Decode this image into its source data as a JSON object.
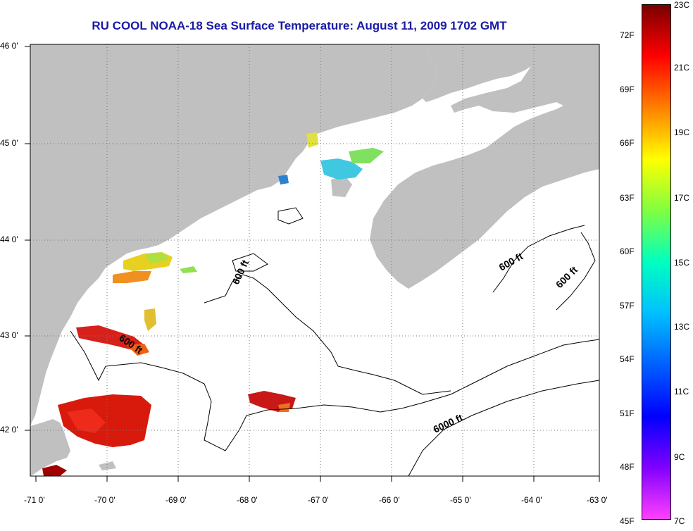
{
  "title": "RU COOL  NOAA-18  Sea Surface Temperature:  August 11, 2009 1702 GMT",
  "map": {
    "lon_range": [
      -71,
      -63
    ],
    "lat_range": [
      41.5,
      46
    ],
    "x_ticks": [
      "-71 0'",
      "-70 0'",
      "-69 0'",
      "-68 0'",
      "-67 0'",
      "-66 0'",
      "-65 0'",
      "-64 0'",
      "-63 0'"
    ],
    "y_ticks": [
      "46 0'",
      "45 0'",
      "44 0'",
      "43 0'",
      "42 0'"
    ],
    "grid": "dotted",
    "land_color": "#c0c0c0",
    "ocean_color": "#ffffff"
  },
  "contours": [
    {
      "label": "600 ft"
    },
    {
      "label": "600 ft"
    },
    {
      "label": "600 ft"
    },
    {
      "label": "600 ft"
    },
    {
      "label": "6000 ft"
    }
  ],
  "colorbar": {
    "fahrenheit_labels": [
      "72F",
      "69F",
      "66F",
      "63F",
      "60F",
      "57F",
      "54F",
      "51F",
      "48F",
      "45F"
    ],
    "celsius_labels": [
      "23C",
      "21C",
      "19C",
      "17C",
      "15C",
      "13C",
      "11C",
      "9C",
      "7C"
    ],
    "colors_top_to_bottom": [
      "#7a0000",
      "#ff0000",
      "#ff8000",
      "#ffff00",
      "#80ff40",
      "#00ffc0",
      "#00c0ff",
      "#0060ff",
      "#0000ff",
      "#8000ff",
      "#ff40ff"
    ]
  }
}
